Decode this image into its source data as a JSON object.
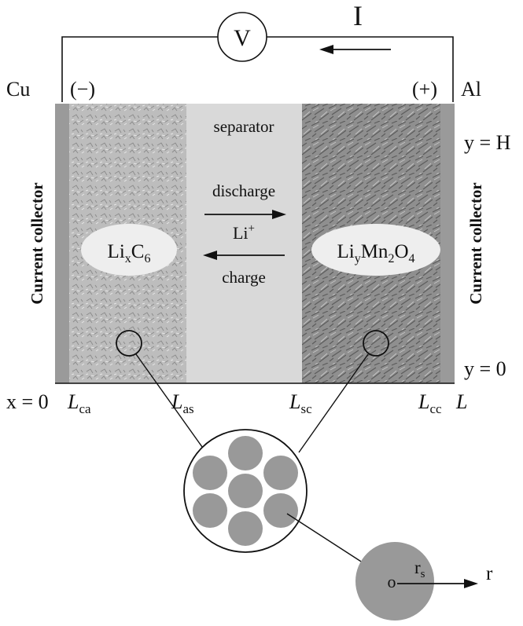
{
  "circuit": {
    "voltmeter_symbol": "V",
    "current_symbol": "I"
  },
  "terminals": {
    "left_metal": "Cu",
    "left_polarity": "(−)",
    "right_polarity": "(+)",
    "right_metal": "Al"
  },
  "regions": {
    "separator_label": "separator",
    "left_collector_label": "Current collector",
    "right_collector_label": "Current collector",
    "anode": {
      "base": "Li",
      "sub1": "x",
      "mid": "C",
      "sub2": "6"
    },
    "cathode": {
      "base": "Li",
      "sub1": "y",
      "mid": "Mn",
      "sub2": "2",
      "mid2": "O",
      "sub3": "4"
    }
  },
  "reactions": {
    "discharge_label": "discharge",
    "ion_base": "Li",
    "ion_charge": "+",
    "charge_label": "charge"
  },
  "coordinates": {
    "y_top": "y = H",
    "y_bottom": "y = 0",
    "x_origin": "x = 0",
    "L_ca_sub": "ca",
    "L_as_sub": "as",
    "L_sc_sub": "sc",
    "L_cc_sub": "cc",
    "L_symbol": "L",
    "L_end": "L"
  },
  "particle": {
    "center_label": "o",
    "radius_base": "r",
    "radius_sub": "s",
    "radial_label": "r"
  },
  "colors": {
    "collector": "#9a9a9a",
    "anode": "#b8b8b8",
    "separator": "#d9d9d9",
    "cathode": "#8e8e8e",
    "particle": "#999999",
    "ellipse": "#eeeeee"
  }
}
